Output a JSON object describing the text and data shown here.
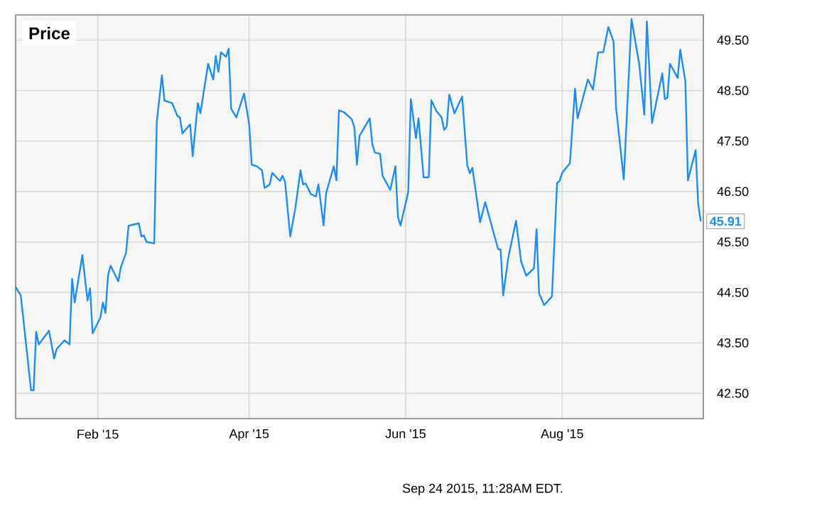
{
  "chart_data": {
    "type": "line",
    "title": "Price",
    "color": "#1f8ded",
    "grid": true,
    "xlim": [
      "2014-12-31",
      "2015-09-25"
    ],
    "ylim": [
      42,
      50
    ],
    "xticks": [
      {
        "value": "2015-02-01",
        "label": "Feb '15"
      },
      {
        "value": "2015-04-01",
        "label": "Apr '15"
      },
      {
        "value": "2015-06-01",
        "label": "Jun '15"
      },
      {
        "value": "2015-08-01",
        "label": "Aug '15"
      }
    ],
    "yticks": [
      {
        "value": 42.5,
        "label": "42.50"
      },
      {
        "value": 43.5,
        "label": "43.50"
      },
      {
        "value": 44.5,
        "label": "44.50"
      },
      {
        "value": 45.5,
        "label": "45.50"
      },
      {
        "value": 46.5,
        "label": "46.50"
      },
      {
        "value": 47.5,
        "label": "47.50"
      },
      {
        "value": 48.5,
        "label": "48.50"
      },
      {
        "value": 49.5,
        "label": "49.50"
      }
    ],
    "annotations": [
      {
        "text": "45.91",
        "x": "2015-09-24",
        "y": 45.91
      },
      "Sep 24 2015, 11:28AM EDT."
    ],
    "x": [
      "2014-12-31",
      "2015-01-02",
      "2015-01-06",
      "2015-01-07",
      "2015-01-08",
      "2015-01-09",
      "2015-01-13",
      "2015-01-15",
      "2015-01-16",
      "2015-01-19",
      "2015-01-21",
      "2015-01-22",
      "2015-01-23",
      "2015-01-26",
      "2015-01-28",
      "2015-01-29",
      "2015-01-30",
      "2015-02-02",
      "2015-02-03",
      "2015-02-04",
      "2015-02-05",
      "2015-02-06",
      "2015-02-09",
      "2015-02-10",
      "2015-02-12",
      "2015-02-13",
      "2015-02-17",
      "2015-02-18",
      "2015-02-19",
      "2015-02-20",
      "2015-02-23",
      "2015-02-24",
      "2015-02-26",
      "2015-02-27",
      "2015-03-02",
      "2015-03-04",
      "2015-03-05",
      "2015-03-06",
      "2015-03-09",
      "2015-03-10",
      "2015-03-12",
      "2015-03-13",
      "2015-03-16",
      "2015-03-18",
      "2015-03-19",
      "2015-03-20",
      "2015-03-21",
      "2015-03-23",
      "2015-03-24",
      "2015-03-25",
      "2015-03-27",
      "2015-03-30",
      "2015-04-01",
      "2015-04-02",
      "2015-04-04",
      "2015-04-06",
      "2015-04-07",
      "2015-04-09",
      "2015-04-10",
      "2015-04-13",
      "2015-04-14",
      "2015-04-15",
      "2015-04-17",
      "2015-04-19",
      "2015-04-21",
      "2015-04-22",
      "2015-04-23",
      "2015-04-25",
      "2015-04-27",
      "2015-04-28",
      "2015-04-30",
      "2015-05-01",
      "2015-05-04",
      "2015-05-05",
      "2015-05-06",
      "2015-05-08",
      "2015-05-11",
      "2015-05-12",
      "2015-05-13",
      "2015-05-14",
      "2015-05-18",
      "2015-05-19",
      "2015-05-20",
      "2015-05-22",
      "2015-05-23",
      "2015-05-26",
      "2015-05-28",
      "2015-05-29",
      "2015-05-30",
      "2015-06-02",
      "2015-06-03",
      "2015-06-05",
      "2015-06-06",
      "2015-06-08",
      "2015-06-10",
      "2015-06-11",
      "2015-06-13",
      "2015-06-15",
      "2015-06-16",
      "2015-06-17",
      "2015-06-18",
      "2015-06-20",
      "2015-06-23",
      "2015-06-25",
      "2015-06-26",
      "2015-06-27",
      "2015-06-30",
      "2015-07-02",
      "2015-07-07",
      "2015-07-08",
      "2015-07-09",
      "2015-07-11",
      "2015-07-14",
      "2015-07-16",
      "2015-07-18",
      "2015-07-21",
      "2015-07-22",
      "2015-07-23",
      "2015-07-25",
      "2015-07-28",
      "2015-07-30",
      "2015-07-31",
      "2015-08-01",
      "2015-08-04",
      "2015-08-06",
      "2015-08-07",
      "2015-08-11",
      "2015-08-13",
      "2015-08-15",
      "2015-08-17",
      "2015-08-19",
      "2015-08-21",
      "2015-08-22",
      "2015-08-25",
      "2015-08-28",
      "2015-08-31",
      "2015-09-02",
      "2015-09-03",
      "2015-09-05",
      "2015-09-09",
      "2015-09-10",
      "2015-09-11",
      "2015-09-12",
      "2015-09-15",
      "2015-09-16",
      "2015-09-18",
      "2015-09-19",
      "2015-09-22",
      "2015-09-23",
      "2015-09-24"
    ],
    "values": [
      44.61,
      44.44,
      42.56,
      42.56,
      43.72,
      43.47,
      43.74,
      43.19,
      43.38,
      43.55,
      43.47,
      44.77,
      44.3,
      45.24,
      44.34,
      44.58,
      43.69,
      44.0,
      44.3,
      44.09,
      44.84,
      45.03,
      44.72,
      45.0,
      45.28,
      45.82,
      45.87,
      45.61,
      45.63,
      45.5,
      45.47,
      47.88,
      48.8,
      48.3,
      48.25,
      48.0,
      47.97,
      47.65,
      47.83,
      47.2,
      48.25,
      48.05,
      49.03,
      48.72,
      49.19,
      48.87,
      49.26,
      49.17,
      49.33,
      48.14,
      47.97,
      48.44,
      47.84,
      47.03,
      47.0,
      46.92,
      46.57,
      46.64,
      46.87,
      46.71,
      46.81,
      46.69,
      45.61,
      46.17,
      46.92,
      46.64,
      46.66,
      46.45,
      46.4,
      46.64,
      45.83,
      46.47,
      47.0,
      46.72,
      48.11,
      48.07,
      47.93,
      47.77,
      47.03,
      47.6,
      47.95,
      47.44,
      47.27,
      47.25,
      46.81,
      46.53,
      47.0,
      45.99,
      45.83,
      46.49,
      48.33,
      47.56,
      47.95,
      46.78,
      46.78,
      48.31,
      48.09,
      47.97,
      47.72,
      47.79,
      48.42,
      48.05,
      48.38,
      47.02,
      46.86,
      46.97,
      45.89,
      46.29,
      45.36,
      45.35,
      44.44,
      45.19,
      45.92,
      45.11,
      44.83,
      44.98,
      45.75,
      44.48,
      44.25,
      44.42,
      46.67,
      46.71,
      46.87,
      47.06,
      48.54,
      47.95,
      48.72,
      48.52,
      49.26,
      49.26,
      49.76,
      49.47,
      48.16,
      46.74,
      49.92,
      49.03,
      48.02,
      49.87,
      47.86,
      48.84,
      48.33,
      48.36,
      49.03,
      48.75,
      49.31,
      48.68,
      46.72,
      47.32,
      46.25,
      45.91
    ]
  }
}
